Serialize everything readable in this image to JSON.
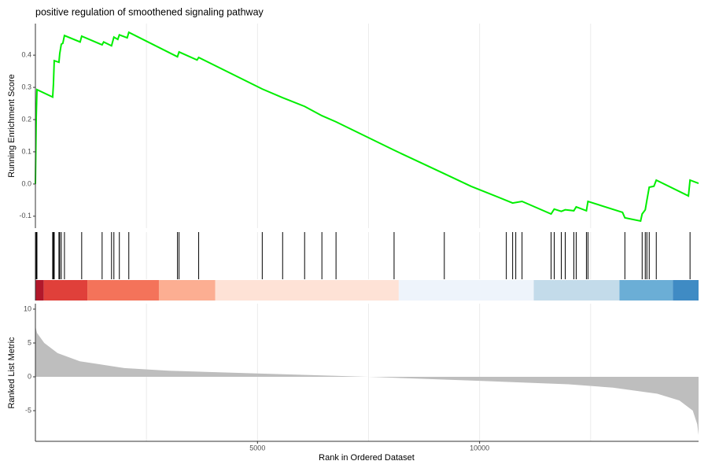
{
  "chart_data": [
    {
      "type": "line",
      "title": "positive regulation of smoothened signaling pathway",
      "ylabel": "Running Enrichment Score",
      "color": "#00ee00",
      "xlim": [
        0,
        14930
      ],
      "xgrid": [
        2500,
        5000,
        7500,
        10000,
        12500
      ],
      "ylim": [
        -0.137,
        0.498
      ],
      "yticks": [
        -0.1,
        {
          "value": 0,
          "label": "0.0"
        },
        0.1,
        0.2,
        0.3,
        0.4
      ],
      "x": [
        0,
        18,
        35,
        389,
        406,
        424,
        530,
        548,
        583,
        618,
        654,
        1007,
        1042,
        1502,
        1537,
        1714,
        1767,
        1855,
        1890,
        2067,
        2103,
        3198,
        3234,
        3640,
        3676,
        5107,
        5566,
        6061,
        6450,
        6768,
        8075,
        9206,
        9807,
        10602,
        10744,
        10956,
        11610,
        11680,
        11840,
        11928,
        12122,
        12175,
        12405,
        12440,
        13218,
        13271,
        13625,
        13660,
        13730,
        13766,
        13819,
        13925,
        13978,
        14702,
        14738,
        14930
      ],
      "values": [
        0,
        0.205,
        0.293,
        0.27,
        0.31,
        0.383,
        0.378,
        0.405,
        0.434,
        0.437,
        0.461,
        0.441,
        0.459,
        0.432,
        0.441,
        0.429,
        0.456,
        0.449,
        0.463,
        0.454,
        0.471,
        0.395,
        0.41,
        0.385,
        0.393,
        0.295,
        0.268,
        0.241,
        0.212,
        0.193,
        0.105,
        0.032,
        -0.007,
        -0.051,
        -0.059,
        -0.054,
        -0.093,
        -0.078,
        -0.085,
        -0.08,
        -0.083,
        -0.071,
        -0.083,
        -0.054,
        -0.088,
        -0.105,
        -0.115,
        -0.093,
        -0.08,
        -0.051,
        -0.01,
        -0.007,
        0.012,
        -0.037,
        0.012,
        0.002
      ]
    },
    {
      "type": "rug",
      "xlim": [
        0,
        14930
      ],
      "xgrid": [
        2500,
        5000,
        7500,
        10000,
        12500
      ],
      "hits": [
        0,
        18,
        35,
        389,
        406,
        424,
        530,
        548,
        583,
        654,
        1042,
        1502,
        1714,
        1767,
        1890,
        2103,
        3198,
        3234,
        3676,
        5107,
        5566,
        6061,
        6450,
        6768,
        8075,
        9206,
        10602,
        10744,
        10815,
        10956,
        11610,
        11680,
        11840,
        11928,
        12122,
        12175,
        12405,
        12440,
        13271,
        13660,
        13730,
        13766,
        13819,
        13978,
        14738
      ],
      "bands": [
        {
          "from": 0,
          "to": 190,
          "color": "#b2182b"
        },
        {
          "from": 190,
          "to": 1170,
          "color": "#e0403a"
        },
        {
          "from": 1170,
          "to": 2780,
          "color": "#f4735a"
        },
        {
          "from": 2780,
          "to": 4050,
          "color": "#fcae92"
        },
        {
          "from": 4050,
          "to": 8180,
          "color": "#fee2d6"
        },
        {
          "from": 8180,
          "to": 11220,
          "color": "#eef4fb"
        },
        {
          "from": 11220,
          "to": 13150,
          "color": "#c3dbea"
        },
        {
          "from": 13150,
          "to": 14350,
          "color": "#6baed6"
        },
        {
          "from": 14350,
          "to": 14930,
          "color": "#3f8bc4"
        }
      ]
    },
    {
      "type": "area",
      "xlabel": "Rank in Ordered Dataset",
      "ylabel": "Ranked List Metric",
      "color": "#bebebe",
      "xlim": [
        0,
        14930
      ],
      "xticks": [
        5000,
        10000
      ],
      "xgrid": [
        2500,
        5000,
        7500,
        10000,
        12500
      ],
      "ylim": [
        -9.53,
        10.81
      ],
      "yticks": [
        -5,
        0,
        5,
        10
      ],
      "x": [
        0,
        35,
        200,
        500,
        1000,
        2000,
        3000,
        5000,
        7500,
        10000,
        12000,
        13000,
        14000,
        14500,
        14800,
        14900,
        14930
      ],
      "values": [
        7.5,
        6.5,
        5,
        3.5,
        2.3,
        1.3,
        0.9,
        0.5,
        0,
        -0.6,
        -1.1,
        -1.6,
        -2.5,
        -3.5,
        -5,
        -7,
        -8.6
      ]
    }
  ]
}
